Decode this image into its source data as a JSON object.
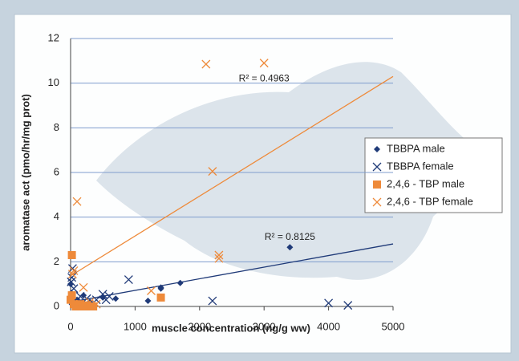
{
  "chart_data": {
    "type": "scatter",
    "xlabel": "muscle concentration (ng/g ww)",
    "ylabel": "aromatase act (pmo/hr/mg prot)",
    "xlim": [
      0,
      5000
    ],
    "xticks": [
      0,
      1000,
      2000,
      3000,
      4000,
      5000
    ],
    "ylim": [
      0,
      12
    ],
    "yticks": [
      0,
      2,
      4,
      6,
      8,
      10,
      12
    ],
    "grid": true,
    "legend": "right",
    "series": [
      {
        "name": "TBBPA male",
        "color": "#1f3a78",
        "marker": "diamond",
        "x": [
          3400,
          1700,
          1400,
          1400,
          1200,
          700,
          500,
          200,
          100,
          50,
          20,
          0,
          10,
          300
        ],
        "values": [
          2.65,
          1.05,
          0.85,
          0.8,
          0.25,
          0.35,
          0.4,
          0.5,
          0.3,
          0.15,
          0.1,
          1.0,
          0.6,
          0.2
        ]
      },
      {
        "name": "TBBPA female",
        "color": "#1f3a78",
        "marker": "x",
        "x": [
          30,
          20,
          10,
          900,
          2200,
          4000,
          4300,
          500,
          550,
          400,
          250,
          150,
          80,
          50,
          600
        ],
        "values": [
          1.7,
          1.3,
          1.1,
          1.2,
          0.25,
          0.15,
          0.05,
          0.55,
          0.3,
          0.3,
          0.35,
          0.45,
          0.2,
          0.8,
          0.45
        ]
      },
      {
        "name": "2,4,6 - TBP male",
        "color": "#ee8a3a",
        "marker": "square",
        "x": [
          20,
          1400,
          0,
          50,
          100,
          150,
          200,
          250,
          300,
          350,
          20,
          80
        ],
        "values": [
          2.3,
          0.4,
          0.3,
          0.1,
          0.05,
          0.1,
          0.0,
          0.05,
          0.0,
          0.0,
          0.5,
          0.0
        ]
      },
      {
        "name": "2,4,6 - TBP female",
        "color": "#ee8a3a",
        "marker": "x",
        "x": [
          2100,
          3000,
          2200,
          2300,
          2300,
          100,
          50,
          30,
          1250,
          200,
          150,
          300,
          400
        ],
        "values": [
          10.85,
          10.9,
          6.05,
          2.3,
          2.15,
          4.7,
          1.6,
          1.45,
          0.7,
          0.85,
          0.1,
          0.2,
          0.1
        ]
      }
    ],
    "trendlines": [
      {
        "color": "#1f3a78",
        "x": [
          0,
          5000
        ],
        "values": [
          0.2,
          2.8
        ],
        "label": "R² = 0.8125",
        "label_x": 3400,
        "label_y": 3.1
      },
      {
        "color": "#ee8a3a",
        "x": [
          0,
          5000
        ],
        "values": [
          1.37,
          10.3
        ],
        "label": "R² = 0.4963",
        "label_x": 3000,
        "label_y": 10.2
      }
    ]
  }
}
